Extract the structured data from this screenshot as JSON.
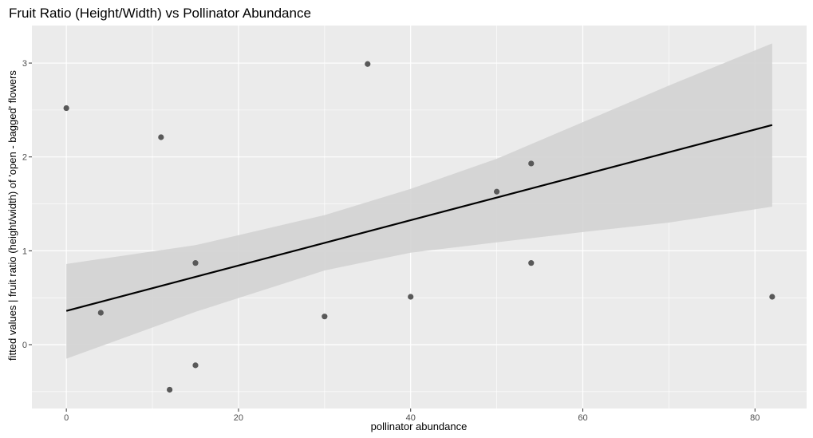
{
  "chart_data": {
    "type": "scatter",
    "title": "Fruit Ratio (Height/Width) vs Pollinator Abundance",
    "xlabel": "pollinator abundance",
    "ylabel": "fitted values | fruit ratio (height/width) of 'open - bagged' flowers",
    "xlim": [
      -4,
      86
    ],
    "ylim": [
      -0.68,
      3.4
    ],
    "x_ticks": [
      0,
      20,
      40,
      60,
      80
    ],
    "y_ticks": [
      0,
      1,
      2,
      3
    ],
    "grid": true,
    "points": [
      {
        "x": 0,
        "y": 2.52
      },
      {
        "x": 4,
        "y": 0.34
      },
      {
        "x": 11,
        "y": 2.21
      },
      {
        "x": 12,
        "y": -0.48
      },
      {
        "x": 15,
        "y": 0.87
      },
      {
        "x": 15,
        "y": -0.22
      },
      {
        "x": 30,
        "y": 0.3
      },
      {
        "x": 35,
        "y": 2.99
      },
      {
        "x": 40,
        "y": 0.51
      },
      {
        "x": 50,
        "y": 1.63
      },
      {
        "x": 54,
        "y": 1.93
      },
      {
        "x": 54,
        "y": 0.87
      },
      {
        "x": 82,
        "y": 0.51
      }
    ],
    "fit_line": {
      "x": [
        0,
        82
      ],
      "y": [
        0.36,
        2.34
      ]
    },
    "confidence_band": {
      "x": [
        0,
        15,
        30,
        40,
        50,
        60,
        70,
        82
      ],
      "lower": [
        -0.15,
        0.35,
        0.79,
        0.98,
        1.09,
        1.2,
        1.3,
        1.47
      ],
      "upper": [
        0.86,
        1.06,
        1.38,
        1.66,
        1.98,
        2.37,
        2.76,
        3.21
      ]
    },
    "colors": {
      "panel": "#ebebeb",
      "grid": "#ffffff",
      "point": "#595959",
      "band": "#d3d3d3",
      "line": "#000000"
    }
  }
}
